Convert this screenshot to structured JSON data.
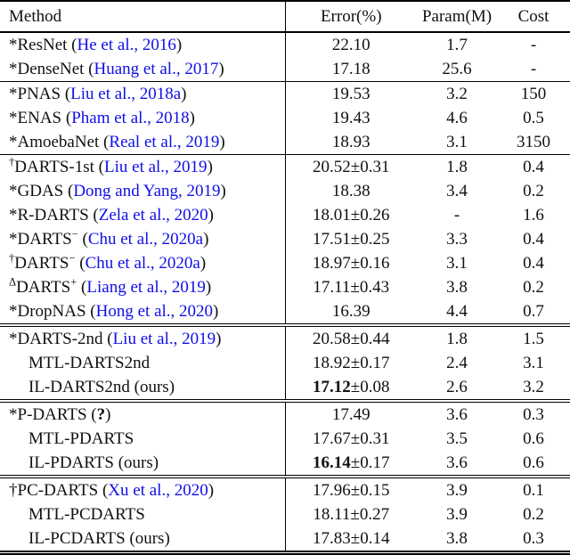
{
  "colors": {
    "link": "#0f0fe8",
    "text": "#111111",
    "rule": "#000000"
  },
  "table": {
    "columns": [
      "Method",
      "Error(%)",
      "Param(M)",
      "Cost"
    ],
    "sections": [
      {
        "rule_above": "none",
        "rows": [
          {
            "method": [
              {
                "t": "*"
              },
              {
                "t": "ResNet ("
              },
              {
                "t": "He et al., 2016",
                "link": true
              },
              {
                "t": ")"
              }
            ],
            "error": [
              {
                "t": "22.10"
              }
            ],
            "param": "1.7",
            "cost": "-"
          },
          {
            "method": [
              {
                "t": "*"
              },
              {
                "t": "DenseNet ("
              },
              {
                "t": "Huang et al., 2017",
                "link": true
              },
              {
                "t": ")"
              }
            ],
            "error": [
              {
                "t": "17.18"
              }
            ],
            "param": "25.6",
            "cost": "-"
          }
        ]
      },
      {
        "rule_above": "single",
        "rows": [
          {
            "method": [
              {
                "t": "*"
              },
              {
                "t": "PNAS ("
              },
              {
                "t": "Liu et al., 2018a",
                "link": true
              },
              {
                "t": ")"
              }
            ],
            "error": [
              {
                "t": "19.53"
              }
            ],
            "param": "3.2",
            "cost": "150"
          },
          {
            "method": [
              {
                "t": "*"
              },
              {
                "t": "ENAS ("
              },
              {
                "t": "Pham et al., 2018",
                "link": true
              },
              {
                "t": ")"
              }
            ],
            "error": [
              {
                "t": "19.43"
              }
            ],
            "param": "4.6",
            "cost": "0.5"
          },
          {
            "method": [
              {
                "t": "*"
              },
              {
                "t": "AmoebaNet ("
              },
              {
                "t": "Real et al., 2019",
                "link": true
              },
              {
                "t": ")"
              }
            ],
            "error": [
              {
                "t": "18.93"
              }
            ],
            "param": "3.1",
            "cost": "3150"
          }
        ]
      },
      {
        "rule_above": "single",
        "rows": [
          {
            "method": [
              {
                "t": "†",
                "sup": true
              },
              {
                "t": "DARTS-1st ("
              },
              {
                "t": "Liu et al., 2019",
                "link": true
              },
              {
                "t": ")"
              }
            ],
            "error": [
              {
                "t": "20.52±0.31"
              }
            ],
            "param": "1.8",
            "cost": "0.4"
          },
          {
            "method": [
              {
                "t": "*"
              },
              {
                "t": "GDAS ("
              },
              {
                "t": "Dong and Yang, 2019",
                "link": true
              },
              {
                "t": ")"
              }
            ],
            "error": [
              {
                "t": "18.38"
              }
            ],
            "param": "3.4",
            "cost": "0.2"
          },
          {
            "method": [
              {
                "t": "*"
              },
              {
                "t": "R-DARTS ("
              },
              {
                "t": "Zela et al., 2020",
                "link": true
              },
              {
                "t": ")"
              }
            ],
            "error": [
              {
                "t": "18.01±0.26"
              }
            ],
            "param": "-",
            "cost": "1.6"
          },
          {
            "method": [
              {
                "t": "*"
              },
              {
                "t": "DARTS"
              },
              {
                "t": "−",
                "sup": true
              },
              {
                "t": " ("
              },
              {
                "t": "Chu et al., 2020a",
                "link": true
              },
              {
                "t": ")"
              }
            ],
            "error": [
              {
                "t": "17.51±0.25"
              }
            ],
            "param": "3.3",
            "cost": "0.4"
          },
          {
            "method": [
              {
                "t": "†",
                "sup": true
              },
              {
                "t": "DARTS"
              },
              {
                "t": "−",
                "sup": true
              },
              {
                "t": " ("
              },
              {
                "t": "Chu et al., 2020a",
                "link": true
              },
              {
                "t": ")"
              }
            ],
            "error": [
              {
                "t": "18.97±0.16"
              }
            ],
            "param": "3.1",
            "cost": "0.4"
          },
          {
            "method": [
              {
                "t": "Δ",
                "sup": true
              },
              {
                "t": "DARTS"
              },
              {
                "t": "+",
                "sup": true
              },
              {
                "t": " ("
              },
              {
                "t": "Liang et al., 2019",
                "link": true
              },
              {
                "t": ")"
              }
            ],
            "error": [
              {
                "t": "17.11±0.43"
              }
            ],
            "param": "3.8",
            "cost": "0.2"
          },
          {
            "method": [
              {
                "t": "*"
              },
              {
                "t": "DropNAS ("
              },
              {
                "t": "Hong et al., 2020",
                "link": true
              },
              {
                "t": ")"
              }
            ],
            "error": [
              {
                "t": "16.39"
              }
            ],
            "param": "4.4",
            "cost": "0.7"
          }
        ]
      },
      {
        "rule_above": "double",
        "rows": [
          {
            "method": [
              {
                "t": "*"
              },
              {
                "t": "DARTS-2nd ("
              },
              {
                "t": "Liu et al., 2019",
                "link": true
              },
              {
                "t": ")"
              }
            ],
            "error": [
              {
                "t": "20.58±0.44"
              }
            ],
            "param": "1.8",
            "cost": "1.5"
          },
          {
            "indent": true,
            "method": [
              {
                "t": "MTL-DARTS2nd"
              }
            ],
            "error": [
              {
                "t": "18.92±0.17"
              }
            ],
            "param": "2.4",
            "cost": "3.1"
          },
          {
            "indent": true,
            "method": [
              {
                "t": "IL-DARTS2nd (ours)"
              }
            ],
            "error": [
              {
                "t": "17.12",
                "bold": true
              },
              {
                "t": "±0.08"
              }
            ],
            "param": "2.6",
            "cost": "3.2"
          }
        ]
      },
      {
        "rule_above": "double",
        "rows": [
          {
            "method": [
              {
                "t": "*"
              },
              {
                "t": "P-DARTS ("
              },
              {
                "t": "?",
                "bold": true
              },
              {
                "t": ")"
              }
            ],
            "error": [
              {
                "t": "17.49"
              }
            ],
            "param": "3.6",
            "cost": "0.3"
          },
          {
            "indent": true,
            "method": [
              {
                "t": "MTL-PDARTS"
              }
            ],
            "error": [
              {
                "t": "17.67±0.31"
              }
            ],
            "param": "3.5",
            "cost": "0.6"
          },
          {
            "indent": true,
            "method": [
              {
                "t": "IL-PDARTS (ours)"
              }
            ],
            "error": [
              {
                "t": "16.14",
                "bold": true
              },
              {
                "t": "±0.17"
              }
            ],
            "param": "3.6",
            "cost": "0.6"
          }
        ]
      },
      {
        "rule_above": "double",
        "rows": [
          {
            "method": [
              {
                "t": "†"
              },
              {
                "t": "PC-DARTS ("
              },
              {
                "t": "Xu et al., 2020",
                "link": true
              },
              {
                "t": ")"
              }
            ],
            "error": [
              {
                "t": "17.96±0.15"
              }
            ],
            "param": "3.9",
            "cost": "0.1"
          },
          {
            "indent": true,
            "method": [
              {
                "t": "MTL-PCDARTS"
              }
            ],
            "error": [
              {
                "t": "18.11±0.27"
              }
            ],
            "param": "3.9",
            "cost": "0.2"
          },
          {
            "indent": true,
            "method": [
              {
                "t": "IL-PCDARTS (ours)"
              }
            ],
            "error": [
              {
                "t": "17.83±0.14"
              }
            ],
            "param": "3.8",
            "cost": "0.3"
          }
        ]
      }
    ]
  }
}
